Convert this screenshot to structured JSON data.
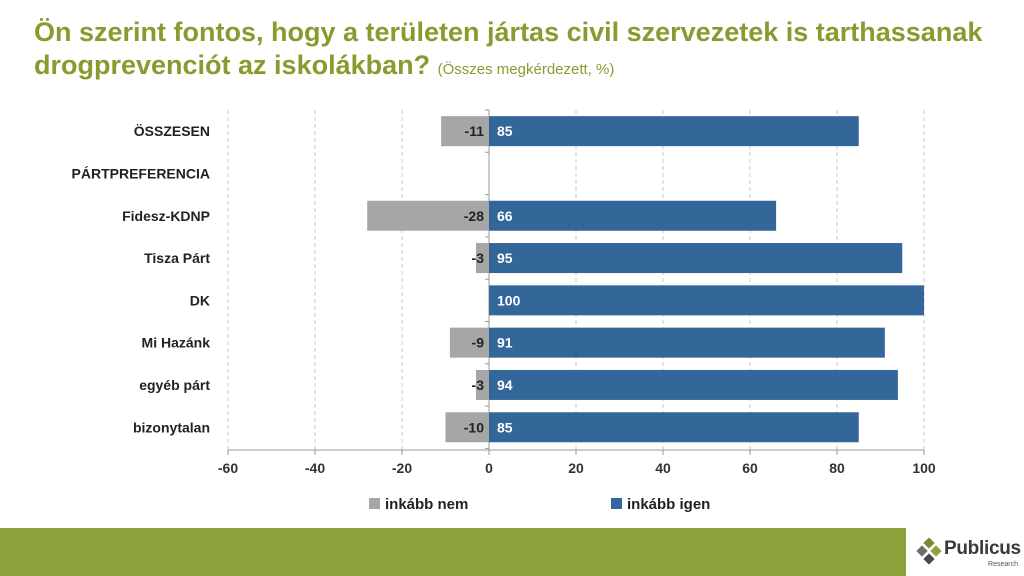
{
  "title": {
    "main": "Ön szerint fontos, hogy a területen jártas civil szervezetek is tarthassanak drogprevenciót az iskolákban?",
    "note": "(Összes megkérdezett, %)"
  },
  "chart_data": {
    "type": "bar",
    "orientation": "horizontal",
    "categories": [
      "ÖSSZESEN",
      "PÁRTPREFERENCIA",
      "Fidesz-KDNP",
      "Tisza Párt",
      "DK",
      "Mi Hazánk",
      "egyéb párt",
      "bizonytalan"
    ],
    "series": [
      {
        "name": "inkább nem",
        "color": "#a6a6a6",
        "values": [
          -11,
          null,
          -28,
          -3,
          null,
          -9,
          -3,
          -10
        ]
      },
      {
        "name": "inkább igen",
        "color": "#336699",
        "values": [
          85,
          null,
          66,
          95,
          100,
          91,
          94,
          85
        ]
      }
    ],
    "xlim": [
      -60,
      100
    ],
    "xticks": [
      -60,
      -40,
      -20,
      0,
      20,
      40,
      60,
      80,
      100
    ],
    "grid": "vertical-dashed",
    "legend": "bottom"
  },
  "logo": {
    "name": "Publicus",
    "sub": "Research"
  }
}
